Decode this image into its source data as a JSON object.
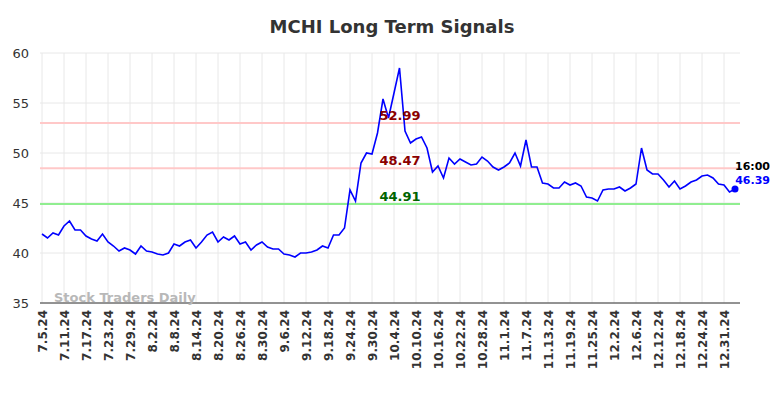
{
  "chart_data": {
    "type": "line",
    "title": "MCHI Long Term Signals",
    "categories": [
      "7.5.24",
      null,
      null,
      null,
      "7.11.24",
      null,
      null,
      null,
      "7.17.24",
      null,
      null,
      null,
      "7.23.24",
      null,
      null,
      null,
      "7.29.24",
      null,
      null,
      null,
      "8.2.24",
      null,
      null,
      null,
      "8.8.24",
      null,
      null,
      null,
      "8.14.24",
      null,
      null,
      null,
      "8.20.24",
      null,
      null,
      null,
      "8.26.24",
      null,
      null,
      null,
      "8.30.24",
      null,
      null,
      null,
      "9.6.24",
      null,
      null,
      null,
      "9.12.24",
      null,
      null,
      null,
      "9.18.24",
      null,
      null,
      null,
      "9.24.24",
      null,
      null,
      null,
      "9.30.24",
      null,
      null,
      null,
      "10.4.24",
      null,
      null,
      null,
      "10.10.24",
      null,
      null,
      null,
      "10.16.24",
      null,
      null,
      null,
      "10.22.24",
      null,
      null,
      null,
      "10.28.24",
      null,
      null,
      null,
      "11.1.24",
      null,
      null,
      null,
      "11.7.24",
      null,
      null,
      null,
      "11.13.24",
      null,
      null,
      null,
      "11.19.24",
      null,
      null,
      null,
      "11.25.24",
      null,
      null,
      null,
      "12.2.24",
      null,
      null,
      null,
      "12.6.24",
      null,
      null,
      null,
      "12.12.24",
      null,
      null,
      null,
      "12.18.24",
      null,
      null,
      null,
      "12.24.24",
      null,
      null,
      null,
      "12.31.24",
      null,
      null
    ],
    "values": [
      41.9,
      41.5,
      42.0,
      41.8,
      42.7,
      43.2,
      42.3,
      42.3,
      41.7,
      41.4,
      41.2,
      41.9,
      41.1,
      40.7,
      40.2,
      40.5,
      40.3,
      39.9,
      40.7,
      40.2,
      40.1,
      39.9,
      39.8,
      40.0,
      40.9,
      40.7,
      41.1,
      41.3,
      40.5,
      41.1,
      41.8,
      42.1,
      41.1,
      41.6,
      41.3,
      41.7,
      40.9,
      41.1,
      40.3,
      40.8,
      41.1,
      40.6,
      40.4,
      40.4,
      39.9,
      39.8,
      39.6,
      40.0,
      40.0,
      40.1,
      40.3,
      40.7,
      40.5,
      41.8,
      41.8,
      42.5,
      46.3,
      45.2,
      49.0,
      50.0,
      49.9,
      52.0,
      55.4,
      53.5,
      56.0,
      58.5,
      52.2,
      51.0,
      51.4,
      51.6,
      50.5,
      48.1,
      48.7,
      47.5,
      49.5,
      48.9,
      49.4,
      49.1,
      48.8,
      48.9,
      49.6,
      49.2,
      48.6,
      48.3,
      48.6,
      49.0,
      50.0,
      48.7,
      51.3,
      48.6,
      48.6,
      47.0,
      46.9,
      46.5,
      46.5,
      47.1,
      46.8,
      47.0,
      46.7,
      45.6,
      45.5,
      45.2,
      46.3,
      46.4,
      46.4,
      46.6,
      46.2,
      46.5,
      46.9,
      50.5,
      48.3,
      47.9,
      47.9,
      47.3,
      46.6,
      47.2,
      46.4,
      46.7,
      47.1,
      47.3,
      47.7,
      47.8,
      47.5,
      46.9,
      46.8,
      46.1,
      46.39
    ],
    "color": "#0000ff",
    "ylim": [
      35,
      60
    ],
    "yticks": [
      35,
      40,
      45,
      50,
      55,
      60
    ],
    "grid": true,
    "reference_lines": [
      {
        "value": 52.99,
        "label": "52.99",
        "color": "#ffc8c8",
        "label_color": "#8b0000"
      },
      {
        "value": 48.47,
        "label": "48.47",
        "color": "#ffc8c8",
        "label_color": "#8b0000"
      },
      {
        "value": 44.91,
        "label": "44.91",
        "color": "#90ee90",
        "label_color": "#006400"
      }
    ],
    "end_labels": [
      "16:00",
      "46.39"
    ],
    "watermark": "Stock Traders Daily"
  }
}
